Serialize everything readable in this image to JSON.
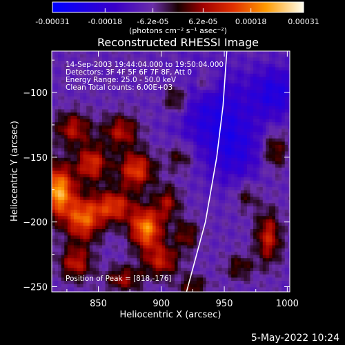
{
  "chart_data": {
    "type": "heatmap",
    "title": "Reconstructed RHESSI Image",
    "xlabel": "Heliocentric X (arcsec)",
    "ylabel": "Heliocentric Y (arcsec)",
    "xlim": [
      813,
      1002
    ],
    "ylim": [
      -254,
      -68
    ],
    "xticks": [
      850,
      900,
      950,
      1000
    ],
    "yticks": [
      -100,
      -150,
      -200,
      -250
    ],
    "colorbar": {
      "range": [
        -0.00031,
        0.00031
      ],
      "tick_labels": [
        "-0.00031",
        "-0.00018",
        "-6.2e-05",
        "6.2e-05",
        "0.00018",
        "0.00031"
      ],
      "tick_values": [
        -0.00031,
        -0.00018,
        -6.2e-05,
        6.2e-05,
        0.00018,
        0.00031
      ],
      "units": "(photons cm⁻² s⁻¹ asec⁻²)"
    },
    "annotations": [
      "14-Sep-2003 19:44:04.000 to 19:50:04.000",
      "Detectors: 3F 4F 5F 6F 7F 8F, Att 0",
      "Energy Range: 25.0 - 50.0 keV",
      "Clean    Total counts: 6.00E+03",
      "Position of Peak = [818,-176]"
    ],
    "peak": [
      818,
      -176
    ],
    "limb_curve": [
      [
        920,
        -254
      ],
      [
        935,
        -200
      ],
      [
        944,
        -150
      ],
      [
        949,
        -110
      ],
      [
        952,
        -68
      ]
    ],
    "sources": [
      {
        "x": 818,
        "y": -176,
        "amp": 0.00031,
        "sx": 9,
        "sy": 14
      },
      {
        "x": 838,
        "y": -198,
        "amp": 0.00024,
        "sx": 10,
        "sy": 12
      },
      {
        "x": 845,
        "y": -155,
        "amp": 0.0002,
        "sx": 9,
        "sy": 10
      },
      {
        "x": 862,
        "y": -188,
        "amp": 0.00021,
        "sx": 11,
        "sy": 9
      },
      {
        "x": 888,
        "y": -205,
        "amp": 0.00028,
        "sx": 9,
        "sy": 11
      },
      {
        "x": 880,
        "y": -160,
        "amp": 0.00022,
        "sx": 10,
        "sy": 10
      },
      {
        "x": 900,
        "y": -230,
        "amp": 0.00017,
        "sx": 10,
        "sy": 9
      },
      {
        "x": 868,
        "y": -130,
        "amp": 0.00016,
        "sx": 10,
        "sy": 9
      },
      {
        "x": 830,
        "y": -128,
        "amp": 0.00016,
        "sx": 10,
        "sy": 9
      },
      {
        "x": 832,
        "y": -232,
        "amp": 0.00017,
        "sx": 9,
        "sy": 9
      },
      {
        "x": 870,
        "y": -244,
        "amp": 0.00014,
        "sx": 10,
        "sy": 7
      },
      {
        "x": 905,
        "y": -185,
        "amp": 0.00014,
        "sx": 7,
        "sy": 9
      },
      {
        "x": 912,
        "y": -105,
        "amp": 0.00013,
        "sx": 7,
        "sy": 8
      },
      {
        "x": 920,
        "y": -210,
        "amp": 0.00012,
        "sx": 7,
        "sy": 8
      },
      {
        "x": 915,
        "y": -150,
        "amp": 0.0001,
        "sx": 8,
        "sy": 8
      },
      {
        "x": 985,
        "y": -212,
        "amp": 0.00018,
        "sx": 7,
        "sy": 14
      },
      {
        "x": 990,
        "y": -145,
        "amp": 0.00013,
        "sx": 7,
        "sy": 10
      },
      {
        "x": 968,
        "y": -180,
        "amp": 9e-05,
        "sx": 7,
        "sy": 8
      },
      {
        "x": 935,
        "y": -92,
        "amp": 0.0001,
        "sx": 6,
        "sy": 8
      },
      {
        "x": 962,
        "y": -235,
        "amp": 0.0001,
        "sx": 8,
        "sy": 7
      },
      {
        "x": 925,
        "y": -250,
        "amp": 0.00011,
        "sx": 8,
        "sy": 6
      },
      {
        "x": 940,
        "y": -115,
        "amp": -0.00012,
        "sx": 20,
        "sy": 25
      },
      {
        "x": 990,
        "y": -100,
        "amp": -0.00014,
        "sx": 14,
        "sy": 14
      },
      {
        "x": 960,
        "y": -145,
        "amp": -0.0001,
        "sx": 16,
        "sy": 20
      }
    ]
  },
  "footer": {
    "date": "5-May-2022 10:24"
  }
}
